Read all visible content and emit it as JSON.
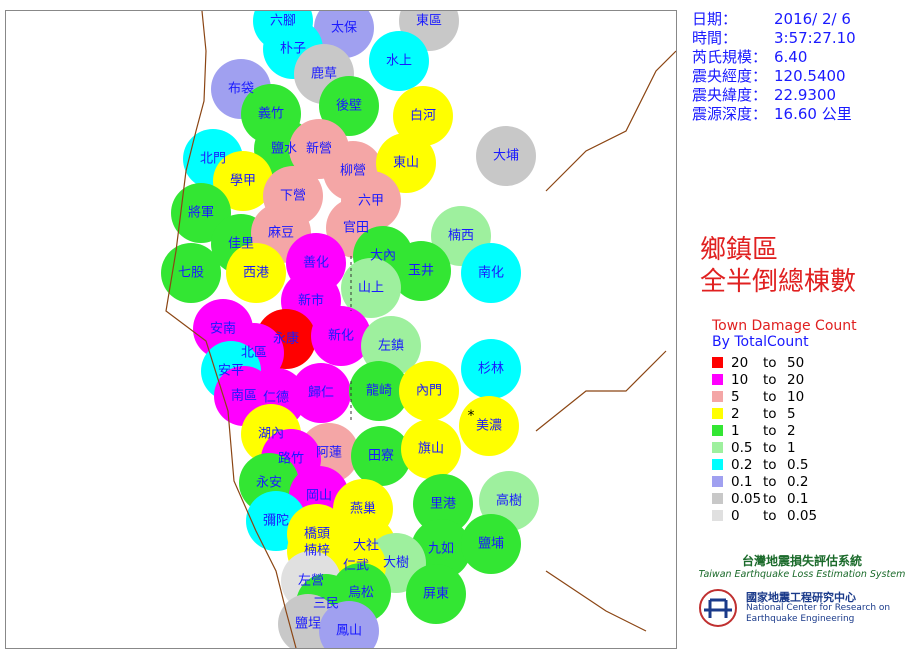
{
  "info": [
    {
      "label": "日期：",
      "value": "2016/ 2/ 6"
    },
    {
      "label": "時間：",
      "value": "3:57:27.10"
    },
    {
      "label": "芮氏規模：",
      "value": "6.40"
    },
    {
      "label": "震央經度：",
      "value": "120.5400"
    },
    {
      "label": "震央緯度：",
      "value": "22.9300"
    },
    {
      "label": "震源深度：",
      "value": "16.60 公里"
    }
  ],
  "title": [
    "鄉鎮區",
    "全半倒總棟數"
  ],
  "legend": {
    "title": "Town Damage Count",
    "subtitle": "By TotalCount",
    "separator": "to",
    "items": [
      {
        "from": 20,
        "to": 50,
        "color": "#ff0000"
      },
      {
        "from": 10,
        "to": 20,
        "color": "#ff00ff"
      },
      {
        "from": 5,
        "to": 10,
        "color": "#f4a6a6"
      },
      {
        "from": 2,
        "to": 5,
        "color": "#ffff00"
      },
      {
        "from": 1,
        "to": 2,
        "color": "#33e633"
      },
      {
        "from": 0.5,
        "to": 1,
        "color": "#9ef09e"
      },
      {
        "from": 0.2,
        "to": 0.5,
        "color": "#00ffff"
      },
      {
        "from": 0.1,
        "to": 0.2,
        "color": "#a0a0f0"
      },
      {
        "from": 0.05,
        "to": 0.1,
        "color": "#c8c8c8"
      },
      {
        "from": 0,
        "to": 0.05,
        "color": "#e0e0e0"
      }
    ]
  },
  "towns": [
    {
      "name": "六腳",
      "color": "#00ffff"
    },
    {
      "name": "太保",
      "color": "#a0a0f0"
    },
    {
      "name": "東區",
      "color": "#c8c8c8"
    },
    {
      "name": "朴子",
      "color": "#00ffff"
    },
    {
      "name": "鹿草",
      "color": "#c8c8c8"
    },
    {
      "name": "水上",
      "color": "#00ffff"
    },
    {
      "name": "布袋",
      "color": "#a0a0f0"
    },
    {
      "name": "義竹",
      "color": "#33e633"
    },
    {
      "name": "後壁",
      "color": "#33e633"
    },
    {
      "name": "白河",
      "color": "#ffff00"
    },
    {
      "name": "北門",
      "color": "#00ffff"
    },
    {
      "name": "鹽水",
      "color": "#33e633"
    },
    {
      "name": "新營",
      "color": "#f4a6a6"
    },
    {
      "name": "柳營",
      "color": "#f4a6a6"
    },
    {
      "name": "東山",
      "color": "#ffff00"
    },
    {
      "name": "大埔",
      "color": "#c8c8c8"
    },
    {
      "name": "學甲",
      "color": "#ffff00"
    },
    {
      "name": "下營",
      "color": "#f4a6a6"
    },
    {
      "name": "六甲",
      "color": "#f4a6a6"
    },
    {
      "name": "將軍",
      "color": "#33e633"
    },
    {
      "name": "官田",
      "color": "#f4a6a6"
    },
    {
      "name": "楠西",
      "color": "#9ef09e"
    },
    {
      "name": "佳里",
      "color": "#33e633"
    },
    {
      "name": "麻豆",
      "color": "#f4a6a6"
    },
    {
      "name": "大內",
      "color": "#33e633"
    },
    {
      "name": "善化",
      "color": "#ff00ff"
    },
    {
      "name": "七股",
      "color": "#33e633"
    },
    {
      "name": "西港",
      "color": "#ffff00"
    },
    {
      "name": "玉井",
      "color": "#33e633"
    },
    {
      "name": "南化",
      "color": "#00ffff"
    },
    {
      "name": "山上",
      "color": "#9ef09e"
    },
    {
      "name": "新市",
      "color": "#ff00ff"
    },
    {
      "name": "安南",
      "color": "#ff00ff"
    },
    {
      "name": "永康",
      "color": "#ff0000"
    },
    {
      "name": "新化",
      "color": "#ff00ff"
    },
    {
      "name": "左鎮",
      "color": "#9ef09e"
    },
    {
      "name": "北區",
      "color": "#ff00ff"
    },
    {
      "name": "安平",
      "color": "#00ffff"
    },
    {
      "name": "南區",
      "color": "#ff00ff"
    },
    {
      "name": "仁德",
      "color": "#ff00ff"
    },
    {
      "name": "歸仁",
      "color": "#ff00ff"
    },
    {
      "name": "龍崎",
      "color": "#33e633"
    },
    {
      "name": "內門",
      "color": "#ffff00"
    },
    {
      "name": "杉林",
      "color": "#00ffff"
    },
    {
      "name": "美濃",
      "color": "#ffff00"
    },
    {
      "name": "湖內",
      "color": "#ffff00"
    },
    {
      "name": "阿蓮",
      "color": "#f4a6a6"
    },
    {
      "name": "田寮",
      "color": "#33e633"
    },
    {
      "name": "旗山",
      "color": "#ffff00"
    },
    {
      "name": "路竹",
      "color": "#ff00ff"
    },
    {
      "name": "永安",
      "color": "#33e633"
    },
    {
      "name": "岡山",
      "color": "#ff00ff"
    },
    {
      "name": "里港",
      "color": "#33e633"
    },
    {
      "name": "高樹",
      "color": "#9ef09e"
    },
    {
      "name": "燕巢",
      "color": "#ffff00"
    },
    {
      "name": "彌陀",
      "color": "#00ffff"
    },
    {
      "name": "橋頭",
      "color": "#ffff00"
    },
    {
      "name": "大社",
      "color": "#ffff00"
    },
    {
      "name": "九如",
      "color": "#33e633"
    },
    {
      "name": "鹽埔",
      "color": "#33e633"
    },
    {
      "name": "楠梓",
      "color": "#ffff00"
    },
    {
      "name": "大樹",
      "color": "#9ef09e"
    },
    {
      "name": "仁武",
      "color": "#ffff00"
    },
    {
      "name": "左營",
      "color": "#e0e0e0"
    },
    {
      "name": "烏松",
      "color": "#33e633"
    },
    {
      "name": "屏東",
      "color": "#33e633"
    },
    {
      "name": "三民",
      "color": "#33e633"
    },
    {
      "name": "鹽埕",
      "color": "#c8c8c8"
    },
    {
      "name": "鳳山",
      "color": "#a0a0f0"
    }
  ],
  "logos": {
    "teles_cn": "台灣地震損失評估系統",
    "teles_en": "Taiwan Earthquake Loss Estimation System",
    "ncree_cn": "國家地震工程研究中心",
    "ncree_en1": "National Center for Research on",
    "ncree_en2": "Earthquake Engineering"
  }
}
